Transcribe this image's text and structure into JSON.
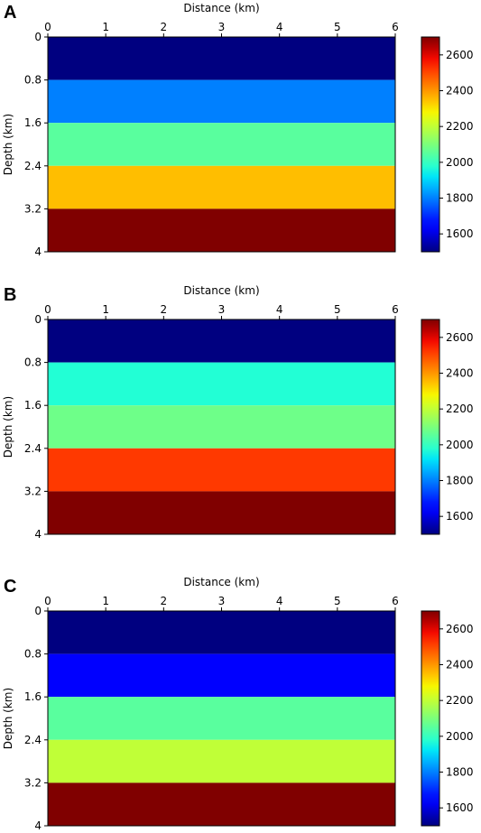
{
  "chart_data": [
    {
      "type": "heatmap",
      "panel_label": "A",
      "xlabel": "Distance (km)",
      "ylabel": "Depth (km)",
      "xlim": [
        0,
        6
      ],
      "ylim": [
        0,
        4
      ],
      "x_ticks": [
        "0",
        "1",
        "2",
        "3",
        "4",
        "5",
        "6"
      ],
      "y_ticks": [
        "0",
        "0.8",
        "1.6",
        "2.4",
        "3.2",
        "4"
      ],
      "x_axis_position": "top",
      "y_inverted": true,
      "layers": [
        {
          "top_km": 0.0,
          "bottom_km": 0.8,
          "velocity": 1500
        },
        {
          "top_km": 0.8,
          "bottom_km": 1.6,
          "velocity": 1800
        },
        {
          "top_km": 1.6,
          "bottom_km": 2.4,
          "velocity": 2050
        },
        {
          "top_km": 2.4,
          "bottom_km": 3.2,
          "velocity": 2350
        },
        {
          "top_km": 3.2,
          "bottom_km": 4.0,
          "velocity": 2700
        }
      ],
      "colorbar": {
        "min": 1500,
        "max": 2700,
        "ticks": [
          "1600",
          "1800",
          "2000",
          "2200",
          "2400",
          "2600"
        ],
        "colormap": "jet"
      }
    },
    {
      "type": "heatmap",
      "panel_label": "B",
      "xlabel": "Distance (km)",
      "ylabel": "Depth (km)",
      "xlim": [
        0,
        6
      ],
      "ylim": [
        0,
        4
      ],
      "x_ticks": [
        "0",
        "1",
        "2",
        "3",
        "4",
        "5",
        "6"
      ],
      "y_ticks": [
        "0",
        "0.8",
        "1.6",
        "2.4",
        "3.2",
        "4"
      ],
      "x_axis_position": "top",
      "y_inverted": true,
      "layers": [
        {
          "top_km": 0.0,
          "bottom_km": 0.8,
          "velocity": 1500
        },
        {
          "top_km": 0.8,
          "bottom_km": 1.6,
          "velocity": 1970
        },
        {
          "top_km": 1.6,
          "bottom_km": 2.4,
          "velocity": 2080
        },
        {
          "top_km": 2.4,
          "bottom_km": 3.2,
          "velocity": 2520
        },
        {
          "top_km": 3.2,
          "bottom_km": 4.0,
          "velocity": 2700
        }
      ],
      "colorbar": {
        "min": 1500,
        "max": 2700,
        "ticks": [
          "1600",
          "1800",
          "2000",
          "2200",
          "2400",
          "2600"
        ],
        "colormap": "jet"
      }
    },
    {
      "type": "heatmap",
      "panel_label": "C",
      "xlabel": "Distance (km)",
      "ylabel": "Depth (km)",
      "xlim": [
        0,
        6
      ],
      "ylim": [
        0,
        4
      ],
      "x_ticks": [
        "0",
        "1",
        "2",
        "3",
        "4",
        "5",
        "6"
      ],
      "y_ticks": [
        "0",
        "0.8",
        "1.6",
        "2.4",
        "3.2",
        "4"
      ],
      "x_axis_position": "top",
      "y_inverted": true,
      "layers": [
        {
          "top_km": 0.0,
          "bottom_km": 0.8,
          "velocity": 1500
        },
        {
          "top_km": 0.8,
          "bottom_km": 1.6,
          "velocity": 1650
        },
        {
          "top_km": 1.6,
          "bottom_km": 2.4,
          "velocity": 2050
        },
        {
          "top_km": 2.4,
          "bottom_km": 3.2,
          "velocity": 2200
        },
        {
          "top_km": 3.2,
          "bottom_km": 4.0,
          "velocity": 2700
        }
      ],
      "colorbar": {
        "min": 1500,
        "max": 2700,
        "ticks": [
          "1600",
          "1800",
          "2000",
          "2200",
          "2400",
          "2600"
        ],
        "colormap": "jet"
      }
    }
  ]
}
